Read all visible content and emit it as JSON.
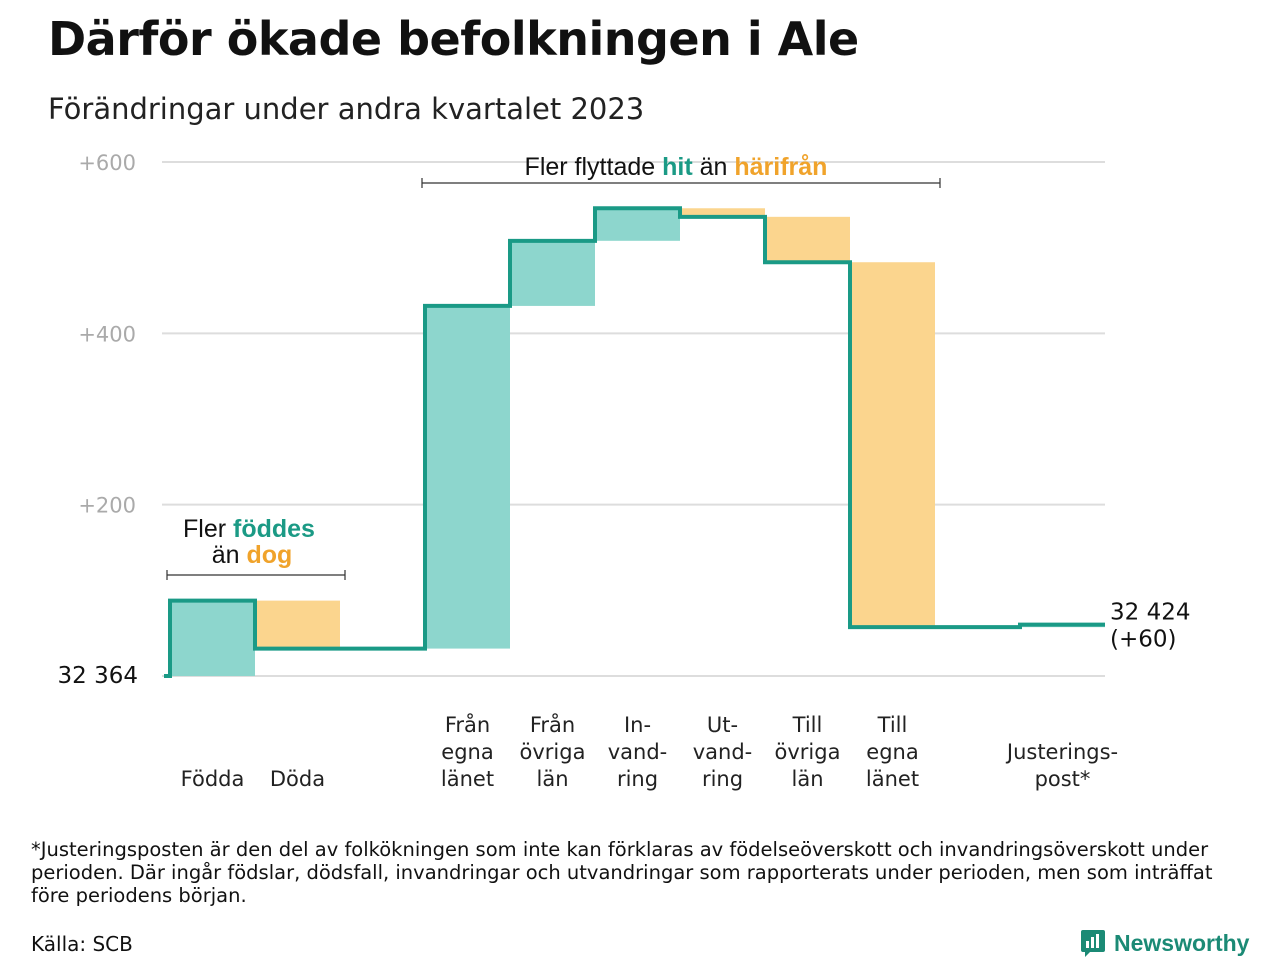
{
  "title": "Därför ökade befolkningen i Ale",
  "subtitle": "Förändringar under andra kvartalet 2023",
  "colors": {
    "inflow": "#8dd6cd",
    "outflow": "#fbd58e",
    "line": "#1a9a86",
    "grid": "#dddddd"
  },
  "chart_data": {
    "type": "waterfall",
    "base_label": "32  364",
    "end_label_lines": [
      "32 424",
      "(+60)"
    ],
    "y_ticks": [
      {
        "value": 200,
        "label": "+200"
      },
      {
        "value": 400,
        "label": "+400"
      },
      {
        "value": 600,
        "label": "+600"
      }
    ],
    "ylim": [
      0,
      600
    ],
    "steps": [
      {
        "label_lines": [
          "Födda"
        ],
        "start": 0,
        "end": 88,
        "kind": "in"
      },
      {
        "label_lines": [
          "Döda"
        ],
        "start": 88,
        "end": 32,
        "kind": "out"
      },
      {
        "label_lines": [
          ""
        ],
        "start": 32,
        "end": 32,
        "kind": "none"
      },
      {
        "label_lines": [
          "Från",
          "egna",
          "länet"
        ],
        "start": 32,
        "end": 432,
        "kind": "in"
      },
      {
        "label_lines": [
          "Från",
          "övriga",
          "län"
        ],
        "start": 432,
        "end": 508,
        "kind": "in"
      },
      {
        "label_lines": [
          "In-",
          "vand-",
          "ring"
        ],
        "start": 508,
        "end": 546,
        "kind": "in"
      },
      {
        "label_lines": [
          "Ut-",
          "vand-",
          "ring"
        ],
        "start": 546,
        "end": 536,
        "kind": "out"
      },
      {
        "label_lines": [
          "Till",
          "övriga",
          "län"
        ],
        "start": 536,
        "end": 483,
        "kind": "out"
      },
      {
        "label_lines": [
          "Till",
          "egna",
          "länet"
        ],
        "start": 483,
        "end": 57,
        "kind": "out"
      },
      {
        "label_lines": [
          ""
        ],
        "start": 57,
        "end": 57,
        "kind": "none"
      },
      {
        "label_lines": [
          "Justerings-",
          "post*"
        ],
        "start": 57,
        "end": 60,
        "kind": "in"
      }
    ],
    "annotations": {
      "births": {
        "line1": [
          "Fler ",
          "föddes"
        ],
        "line2": [
          "än ",
          "dog"
        ]
      },
      "migration": {
        "parts": [
          "Fler flyttade ",
          "hit",
          " än ",
          "härifrån"
        ]
      }
    }
  },
  "footnote": "*Justeringsposten är den del av folkökningen som inte kan förklaras av födelseöverskott och invandringsöverskott under perioden. Där ingår födslar, dödsfall, invandringar och utvandringar som rapporterats under perioden, men som inträffat före periodens början.",
  "source": "Källa: SCB",
  "brand": "Newsworthy"
}
